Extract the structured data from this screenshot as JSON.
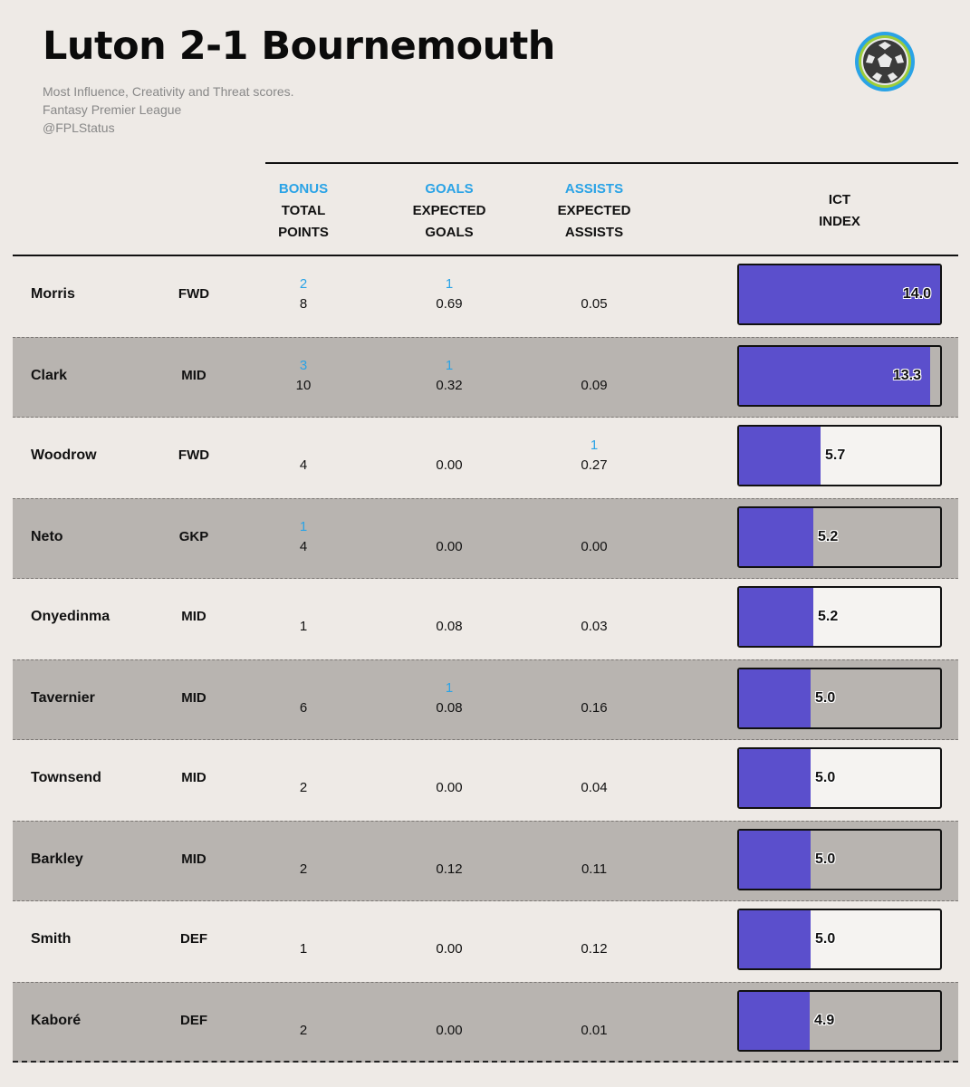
{
  "header": {
    "title": "Luton 2-1 Bournemouth",
    "subtitle_lines": [
      "Most Influence, Creativity and Threat scores.",
      "Fantasy Premier League",
      "@FPLStatus"
    ],
    "logo_icon": "soccer-ball-icon"
  },
  "columns": {
    "points": {
      "sup": "BONUS",
      "line1": "TOTAL",
      "line2": "POINTS"
    },
    "goals": {
      "sup": "GOALS",
      "line1": "EXPECTED",
      "line2": "GOALS"
    },
    "assists": {
      "sup": "ASSISTS",
      "line1": "EXPECTED",
      "line2": "ASSISTS"
    },
    "ict": {
      "line1": "ICT",
      "line2": "INDEX"
    }
  },
  "colors": {
    "bar_fill": "#5b4fcc",
    "accent_blue": "#2aa3e6",
    "row_shade": "#b8b4b0",
    "background": "#eeeae6"
  },
  "chart_data": {
    "type": "table",
    "bar_column": "ict_index",
    "bar_max": 14.0,
    "rows": [
      {
        "name": "Morris",
        "position": "FWD",
        "bonus": "2",
        "total_points": "8",
        "goals": "1",
        "expected_goals": "0.69",
        "assists": "",
        "expected_assists": "0.05",
        "ict_index": 14.0,
        "ict_label": "14.0"
      },
      {
        "name": "Clark",
        "position": "MID",
        "bonus": "3",
        "total_points": "10",
        "goals": "1",
        "expected_goals": "0.32",
        "assists": "",
        "expected_assists": "0.09",
        "ict_index": 13.3,
        "ict_label": "13.3"
      },
      {
        "name": "Woodrow",
        "position": "FWD",
        "bonus": "",
        "total_points": "4",
        "goals": "",
        "expected_goals": "0.00",
        "assists": "1",
        "expected_assists": "0.27",
        "ict_index": 5.7,
        "ict_label": "5.7"
      },
      {
        "name": "Neto",
        "position": "GKP",
        "bonus": "1",
        "total_points": "4",
        "goals": "",
        "expected_goals": "0.00",
        "assists": "",
        "expected_assists": "0.00",
        "ict_index": 5.2,
        "ict_label": "5.2"
      },
      {
        "name": "Onyedinma",
        "position": "MID",
        "bonus": "",
        "total_points": "1",
        "goals": "",
        "expected_goals": "0.08",
        "assists": "",
        "expected_assists": "0.03",
        "ict_index": 5.2,
        "ict_label": "5.2"
      },
      {
        "name": "Tavernier",
        "position": "MID",
        "bonus": "",
        "total_points": "6",
        "goals": "1",
        "expected_goals": "0.08",
        "assists": "",
        "expected_assists": "0.16",
        "ict_index": 5.0,
        "ict_label": "5.0"
      },
      {
        "name": "Townsend",
        "position": "MID",
        "bonus": "",
        "total_points": "2",
        "goals": "",
        "expected_goals": "0.00",
        "assists": "",
        "expected_assists": "0.04",
        "ict_index": 5.0,
        "ict_label": "5.0"
      },
      {
        "name": "Barkley",
        "position": "MID",
        "bonus": "",
        "total_points": "2",
        "goals": "",
        "expected_goals": "0.12",
        "assists": "",
        "expected_assists": "0.11",
        "ict_index": 5.0,
        "ict_label": "5.0"
      },
      {
        "name": "Smith",
        "position": "DEF",
        "bonus": "",
        "total_points": "1",
        "goals": "",
        "expected_goals": "0.00",
        "assists": "",
        "expected_assists": "0.12",
        "ict_index": 5.0,
        "ict_label": "5.0"
      },
      {
        "name": "Kaboré",
        "position": "DEF",
        "bonus": "",
        "total_points": "2",
        "goals": "",
        "expected_goals": "0.00",
        "assists": "",
        "expected_assists": "0.01",
        "ict_index": 4.9,
        "ict_label": "4.9"
      }
    ]
  }
}
